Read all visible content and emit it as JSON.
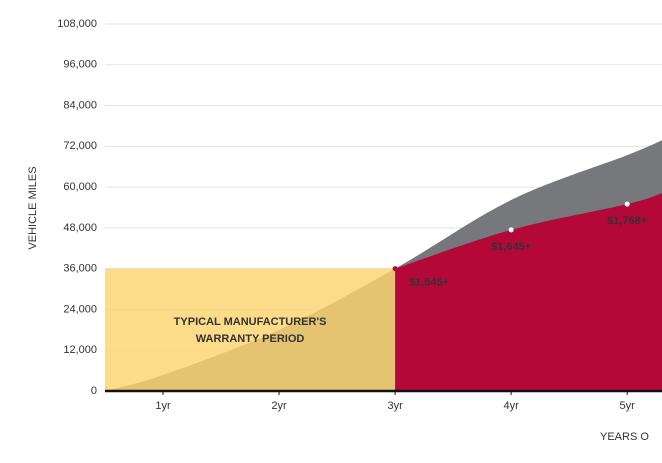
{
  "chart_data": {
    "type": "area",
    "y_label": "VEHICLE MILES",
    "x_label": "YEARS O",
    "xlim": [
      0.5,
      5.3
    ],
    "xticks": [
      {
        "value": 1,
        "label": "1yr"
      },
      {
        "value": 2,
        "label": "2yr"
      },
      {
        "value": 3,
        "label": "3yr"
      },
      {
        "value": 4,
        "label": "4yr"
      },
      {
        "value": 5,
        "label": "5yr"
      }
    ],
    "ylim": [
      0,
      108000
    ],
    "yticks": [
      {
        "value": 0,
        "label": "0"
      },
      {
        "value": 12000,
        "label": "12,000"
      },
      {
        "value": 24000,
        "label": "24,000"
      },
      {
        "value": 36000,
        "label": "36,000"
      },
      {
        "value": 48000,
        "label": "48,000"
      },
      {
        "value": 60000,
        "label": "60,000"
      },
      {
        "value": 72000,
        "label": "72,000"
      },
      {
        "value": 84000,
        "label": "84,000"
      },
      {
        "value": 96000,
        "label": "96,000"
      },
      {
        "value": 108000,
        "label": "108,000"
      }
    ],
    "grid": true,
    "series": [
      {
        "color": "#77787b",
        "x": [
          0.5,
          1,
          2,
          3,
          4,
          5,
          5.3
        ],
        "values": [
          0,
          4700,
          18000,
          36000,
          56200,
          69400,
          73800
        ]
      },
      {
        "color": "#b30838",
        "x": [
          3,
          4,
          5,
          5.3
        ],
        "values": [
          36000,
          47400,
          55000,
          58200
        ]
      }
    ],
    "warranty": {
      "xlim": [
        0.5,
        3
      ],
      "y": 36000,
      "color": "#fdd46f",
      "label": [
        "TYPICAL MANUFACTURER'S",
        "WARRANTY PERIOD"
      ]
    },
    "annotations": [
      {
        "x": 3,
        "y": 36000,
        "label": "$1,545+"
      },
      {
        "x": 4,
        "y": 47400,
        "label": "$1,645+"
      },
      {
        "x": 5,
        "y": 55000,
        "label": "$1,768+"
      }
    ]
  }
}
